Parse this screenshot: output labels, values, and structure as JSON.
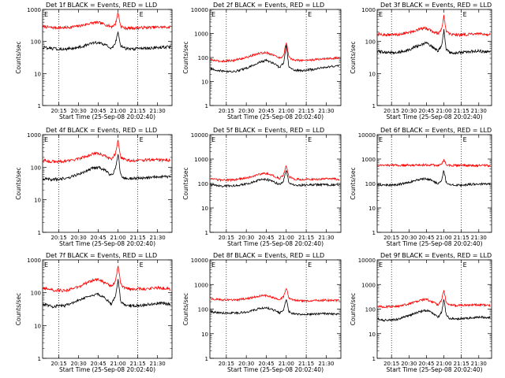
{
  "figure": {
    "xlabel": "Start Time (25-Sep-08 20:02:40)",
    "ylabel": "Counts/sec",
    "x_ticks": [
      "20:15",
      "20:30",
      "20:45",
      "21:00",
      "21:15",
      "21:30"
    ],
    "colors": {
      "events": "#000000",
      "lld": "#ff0000",
      "axes": "#000000"
    },
    "markers": [
      "E",
      "E"
    ]
  },
  "chart_data": [
    {
      "title": "Det 1f BLACK = Events, RED = LLD",
      "type": "line",
      "yscale": "log",
      "ylim": [
        1,
        1000
      ],
      "y_ticks": [
        "1000",
        "100",
        "10",
        "1"
      ],
      "xlim": [
        "20:02:40",
        "21:41:00"
      ],
      "dotted_lines_x": [
        "20:15",
        "21:15"
      ],
      "series": [
        {
          "x": [
            "20:03",
            "20:10",
            "20:20",
            "20:30",
            "20:40",
            "20:45",
            "20:50",
            "20:55",
            "20:58",
            "21:00",
            "21:02",
            "21:05",
            "21:10",
            "21:20",
            "21:30",
            "21:40"
          ],
          "values": [
            290,
            270,
            270,
            300,
            380,
            390,
            340,
            290,
            350,
            800,
            300,
            260,
            260,
            270,
            280,
            280
          ]
        },
        {
          "x": [
            "20:03",
            "20:10",
            "20:20",
            "20:30",
            "20:40",
            "20:45",
            "20:50",
            "20:55",
            "20:58",
            "21:00",
            "21:02",
            "21:05",
            "21:10",
            "21:20",
            "21:30",
            "21:40"
          ],
          "values": [
            65,
            60,
            58,
            65,
            85,
            95,
            80,
            60,
            90,
            200,
            75,
            60,
            58,
            60,
            65,
            68
          ]
        }
      ]
    },
    {
      "title": "Det 2f BLACK = Events, RED = LLD",
      "type": "line",
      "yscale": "log",
      "ylim": [
        1,
        10000
      ],
      "y_ticks": [
        "10000",
        "1000",
        "100",
        "10",
        "1"
      ],
      "xlim": [
        "20:02:40",
        "21:41:00"
      ],
      "dotted_lines_x": [
        "20:15",
        "21:15"
      ],
      "series": [
        {
          "x": [
            "20:03",
            "20:10",
            "20:20",
            "20:30",
            "20:40",
            "20:45",
            "20:50",
            "20:55",
            "20:58",
            "21:00",
            "21:02",
            "21:05",
            "21:10",
            "21:20",
            "21:30",
            "21:40"
          ],
          "values": [
            80,
            70,
            75,
            100,
            150,
            160,
            130,
            95,
            120,
            450,
            100,
            80,
            75,
            80,
            90,
            95
          ]
        },
        {
          "x": [
            "20:03",
            "20:10",
            "20:20",
            "20:30",
            "20:40",
            "20:45",
            "20:50",
            "20:55",
            "20:58",
            "21:00",
            "21:02",
            "21:05",
            "21:10",
            "21:20",
            "21:30",
            "21:40"
          ],
          "values": [
            35,
            28,
            25,
            35,
            65,
            75,
            60,
            38,
            60,
            350,
            38,
            30,
            28,
            32,
            40,
            45
          ]
        }
      ]
    },
    {
      "title": "Det 3f BLACK = Events, RED = LLD",
      "type": "line",
      "yscale": "log",
      "ylim": [
        1,
        1000
      ],
      "y_ticks": [
        "1000",
        "100",
        "10",
        "1"
      ],
      "xlim": [
        "20:02:40",
        "21:41:00"
      ],
      "dotted_lines_x": [
        "20:15",
        "21:15"
      ],
      "series": [
        {
          "x": [
            "20:03",
            "20:10",
            "20:20",
            "20:30",
            "20:40",
            "20:45",
            "20:50",
            "20:55",
            "20:58",
            "21:00",
            "21:02",
            "21:05",
            "21:10",
            "21:20",
            "21:30",
            "21:40"
          ],
          "values": [
            170,
            160,
            165,
            190,
            250,
            260,
            210,
            175,
            240,
            650,
            200,
            170,
            160,
            165,
            170,
            160
          ]
        },
        {
          "x": [
            "20:03",
            "20:10",
            "20:20",
            "20:30",
            "20:40",
            "20:45",
            "20:50",
            "20:55",
            "20:58",
            "21:00",
            "21:02",
            "21:05",
            "21:10",
            "21:20",
            "21:30",
            "21:40"
          ],
          "values": [
            50,
            45,
            45,
            55,
            80,
            90,
            70,
            50,
            70,
            230,
            55,
            45,
            45,
            48,
            50,
            48
          ]
        }
      ]
    },
    {
      "title": "Det 4f BLACK = Events, RED = LLD",
      "type": "line",
      "yscale": "log",
      "ylim": [
        1,
        1000
      ],
      "y_ticks": [
        "1000",
        "100",
        "10",
        "1"
      ],
      "xlim": [
        "20:02:40",
        "21:41:00"
      ],
      "dotted_lines_x": [
        "20:15",
        "21:15"
      ],
      "series": [
        {
          "x": [
            "20:03",
            "20:10",
            "20:20",
            "20:30",
            "20:40",
            "20:45",
            "20:50",
            "20:55",
            "20:58",
            "21:00",
            "21:02",
            "21:05",
            "21:10",
            "21:20",
            "21:30",
            "21:40"
          ],
          "values": [
            160,
            150,
            150,
            180,
            250,
            270,
            220,
            170,
            260,
            700,
            210,
            170,
            160,
            165,
            170,
            160
          ]
        },
        {
          "x": [
            "20:03",
            "20:10",
            "20:20",
            "20:30",
            "20:40",
            "20:45",
            "20:50",
            "20:55",
            "20:58",
            "21:00",
            "21:02",
            "21:05",
            "21:10",
            "21:20",
            "21:30",
            "21:40"
          ],
          "values": [
            45,
            42,
            45,
            60,
            90,
            100,
            80,
            55,
            90,
            250,
            60,
            45,
            45,
            48,
            52,
            50
          ]
        }
      ]
    },
    {
      "title": "Det 5f BLACK = Events, RED = LLD",
      "type": "line",
      "yscale": "log",
      "ylim": [
        1,
        10000
      ],
      "y_ticks": [
        "10000",
        "1000",
        "100",
        "10",
        "1"
      ],
      "xlim": [
        "20:02:40",
        "21:41:00"
      ],
      "dotted_lines_x": [
        "20:15",
        "21:15"
      ],
      "series": [
        {
          "x": [
            "20:03",
            "20:10",
            "20:20",
            "20:30",
            "20:40",
            "20:45",
            "20:50",
            "20:55",
            "20:58",
            "21:00",
            "21:02",
            "21:05",
            "21:10",
            "21:20",
            "21:30",
            "21:40"
          ],
          "values": [
            150,
            140,
            140,
            170,
            240,
            260,
            210,
            160,
            220,
            550,
            190,
            155,
            145,
            150,
            155,
            150
          ]
        },
        {
          "x": [
            "20:03",
            "20:10",
            "20:20",
            "20:30",
            "20:40",
            "20:45",
            "20:50",
            "20:55",
            "20:58",
            "21:00",
            "21:02",
            "21:05",
            "21:10",
            "21:20",
            "21:30",
            "21:40"
          ],
          "values": [
            90,
            80,
            80,
            95,
            140,
            150,
            120,
            90,
            130,
            350,
            110,
            90,
            85,
            88,
            90,
            90
          ]
        }
      ]
    },
    {
      "title": "Det 6f BLACK = Events, RED = LLD",
      "type": "line",
      "yscale": "log",
      "ylim": [
        1,
        10000
      ],
      "y_ticks": [
        "10000",
        "1000",
        "100",
        "10",
        "1"
      ],
      "xlim": [
        "20:02:40",
        "21:41:00"
      ],
      "dotted_lines_x": [
        "20:15",
        "21:15"
      ],
      "series": [
        {
          "x": [
            "20:03",
            "20:10",
            "20:20",
            "20:30",
            "20:40",
            "20:45",
            "20:50",
            "20:55",
            "20:58",
            "21:00",
            "21:02",
            "21:05",
            "21:10",
            "21:20",
            "21:30",
            "21:40"
          ],
          "values": [
            560,
            560,
            560,
            560,
            570,
            575,
            570,
            560,
            620,
            900,
            600,
            560,
            555,
            550,
            550,
            545
          ]
        },
        {
          "x": [
            "20:03",
            "20:10",
            "20:20",
            "20:30",
            "20:40",
            "20:45",
            "20:50",
            "20:55",
            "20:58",
            "21:00",
            "21:02",
            "21:05",
            "21:10",
            "21:20",
            "21:30",
            "21:40"
          ],
          "values": [
            90,
            85,
            90,
            110,
            150,
            160,
            130,
            95,
            140,
            350,
            110,
            90,
            85,
            90,
            95,
            95
          ]
        }
      ]
    },
    {
      "title": "Det 7f BLACK = Events, RED = LLD",
      "type": "line",
      "yscale": "log",
      "ylim": [
        1,
        1000
      ],
      "y_ticks": [
        "1000",
        "100",
        "10",
        "1"
      ],
      "xlim": [
        "20:02:40",
        "21:41:00"
      ],
      "dotted_lines_x": [
        "20:15",
        "21:15"
      ],
      "series": [
        {
          "x": [
            "20:03",
            "20:10",
            "20:20",
            "20:30",
            "20:40",
            "20:45",
            "20:50",
            "20:55",
            "20:58",
            "21:00",
            "21:02",
            "21:05",
            "21:10",
            "21:20",
            "21:30",
            "21:40"
          ],
          "values": [
            140,
            120,
            115,
            150,
            230,
            250,
            200,
            150,
            230,
            650,
            180,
            140,
            130,
            130,
            140,
            130
          ]
        },
        {
          "x": [
            "20:03",
            "20:10",
            "20:20",
            "20:30",
            "20:40",
            "20:45",
            "20:50",
            "20:55",
            "20:58",
            "21:00",
            "21:02",
            "21:05",
            "21:10",
            "21:20",
            "21:30",
            "21:40"
          ],
          "values": [
            45,
            38,
            40,
            60,
            85,
            90,
            70,
            45,
            75,
            250,
            55,
            42,
            40,
            42,
            48,
            45
          ]
        }
      ]
    },
    {
      "title": "Det 8f BLACK = Events, RED = LLD",
      "type": "line",
      "yscale": "log",
      "ylim": [
        1,
        10000
      ],
      "y_ticks": [
        "10000",
        "1000",
        "100",
        "10",
        "1"
      ],
      "xlim": [
        "20:02:40",
        "21:41:00"
      ],
      "dotted_lines_x": [
        "20:15",
        "21:15"
      ],
      "series": [
        {
          "x": [
            "20:03",
            "20:10",
            "20:20",
            "20:30",
            "20:40",
            "20:45",
            "20:50",
            "20:55",
            "20:58",
            "21:00",
            "21:02",
            "21:05",
            "21:10",
            "21:20",
            "21:30",
            "21:40"
          ],
          "values": [
            270,
            240,
            230,
            260,
            340,
            360,
            300,
            240,
            320,
            700,
            280,
            230,
            220,
            220,
            230,
            220
          ]
        },
        {
          "x": [
            "20:03",
            "20:10",
            "20:20",
            "20:30",
            "20:40",
            "20:45",
            "20:50",
            "20:55",
            "20:58",
            "21:00",
            "21:02",
            "21:05",
            "21:10",
            "21:20",
            "21:30",
            "21:40"
          ],
          "values": [
            80,
            70,
            68,
            75,
            105,
            115,
            95,
            70,
            90,
            250,
            80,
            65,
            62,
            62,
            65,
            60
          ]
        }
      ]
    },
    {
      "title": "Det 9f BLACK = Events, RED = LLD",
      "type": "line",
      "yscale": "log",
      "ylim": [
        1,
        10000
      ],
      "y_ticks": [
        "10000",
        "1000",
        "100",
        "10",
        "1"
      ],
      "xlim": [
        "20:02:40",
        "21:41:00"
      ],
      "dotted_lines_x": [
        "20:15",
        "21:15"
      ],
      "series": [
        {
          "x": [
            "20:03",
            "20:10",
            "20:20",
            "20:30",
            "20:40",
            "20:45",
            "20:50",
            "20:55",
            "20:58",
            "21:00",
            "21:02",
            "21:05",
            "21:10",
            "21:20",
            "21:30",
            "21:40"
          ],
          "values": [
            130,
            125,
            130,
            160,
            230,
            250,
            200,
            150,
            230,
            650,
            180,
            150,
            140,
            145,
            150,
            140
          ]
        },
        {
          "x": [
            "20:03",
            "20:10",
            "20:20",
            "20:30",
            "20:40",
            "20:45",
            "20:50",
            "20:55",
            "20:58",
            "21:00",
            "21:02",
            "21:05",
            "21:10",
            "21:20",
            "21:30",
            "21:40"
          ],
          "values": [
            40,
            35,
            38,
            55,
            80,
            90,
            70,
            45,
            75,
            260,
            55,
            42,
            40,
            42,
            48,
            45
          ]
        }
      ]
    }
  ]
}
